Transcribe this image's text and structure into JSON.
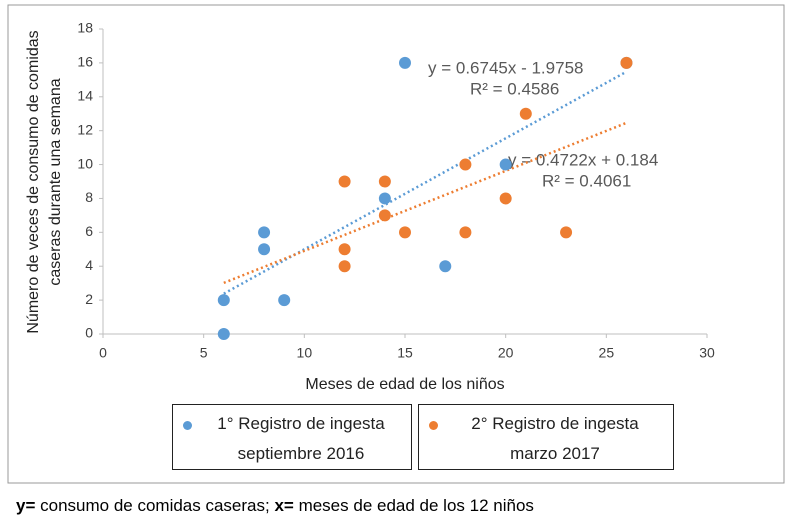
{
  "chart_data": {
    "type": "scatter",
    "xlabel": "Meses de edad de los niños",
    "ylabel": [
      "Número de veces de consumo de comidas",
      "caseras durante  una semana"
    ],
    "xlim": [
      0,
      30
    ],
    "xticks": [
      0,
      5,
      10,
      15,
      20,
      25,
      30
    ],
    "ylim": [
      0,
      18
    ],
    "yticks": [
      0,
      2,
      4,
      6,
      8,
      10,
      12,
      14,
      16,
      18
    ],
    "grid": false,
    "trendline": true,
    "series": [
      {
        "name": "1° Registro de ingesta septiembre 2016",
        "color": "#5b9bd5",
        "x": [
          6,
          6,
          8,
          8,
          9,
          14,
          15,
          17,
          20,
          26
        ],
        "values": [
          0,
          2,
          6,
          5,
          2,
          8,
          16,
          4,
          10,
          16
        ]
      },
      {
        "name": "2° Registro de ingesta marzo 2017",
        "color": "#ed7d31",
        "x": [
          12,
          12,
          12,
          14,
          14,
          15,
          18,
          18,
          20,
          21,
          23,
          26
        ],
        "values": [
          9,
          5,
          4,
          9,
          7,
          6,
          10,
          6,
          8,
          13,
          6,
          16
        ]
      }
    ],
    "annotations": [
      "y = 0.6745x - 1.9758",
      "R² = 0.4586",
      "y = 0.4722x + 0.184",
      "R² = 0.4061"
    ]
  },
  "caption": {
    "y_key": "y=",
    "y_text": " consumo de comidas caseras; ",
    "x_key": "x=",
    "x_text": " meses de edad de los 12 niños"
  }
}
